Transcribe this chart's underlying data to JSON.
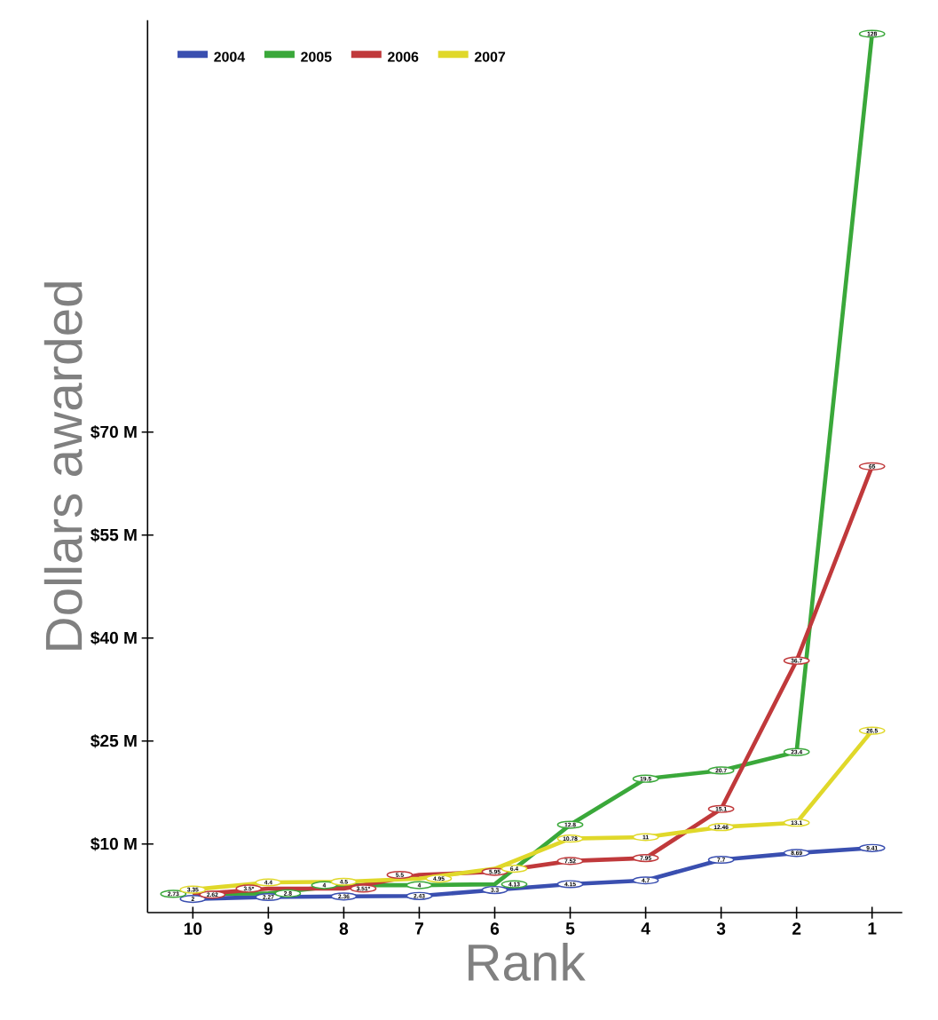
{
  "chart_data": {
    "type": "line",
    "xlabel": "Rank",
    "ylabel": "Dollars awarded",
    "categories": [
      "10",
      "9",
      "8",
      "7",
      "6",
      "5",
      "4",
      "3",
      "2",
      "1"
    ],
    "series": [
      {
        "name": "2004",
        "color": "#3a4fb0",
        "values": [
          2,
          2.27,
          2.36,
          2.43,
          3.3,
          4.15,
          4.7,
          7.7,
          8.69,
          9.41
        ],
        "value_labels": [
          "2",
          "2.27",
          "2.36",
          "2.43",
          "3.3",
          "4.15",
          "4.7",
          "7.7",
          "8.69",
          "9.41"
        ]
      },
      {
        "name": "2005",
        "color": "#3aa83a",
        "values": [
          2.73,
          2.8,
          4,
          4,
          4.13,
          12.8,
          19.5,
          20.7,
          23.4,
          128
        ],
        "value_labels": [
          "2.73",
          "2.8",
          "4",
          "4",
          "4.13",
          "12.8",
          "19.5",
          "20.7",
          "23.4",
          "128"
        ]
      },
      {
        "name": "2006",
        "color": "#c0393b",
        "values": [
          2.62,
          3.5,
          3.51,
          5.5,
          5.95,
          7.52,
          7.95,
          15.1,
          36.7,
          65
        ],
        "value_labels": [
          "2.62",
          "3.5*",
          "3.51*",
          "5.5",
          "5.95",
          "7.52",
          "7.95",
          "15.1",
          "36.7",
          "65"
        ]
      },
      {
        "name": "2007",
        "color": "#e0d82a",
        "values": [
          3.35,
          4.4,
          4.5,
          4.95,
          6.4,
          10.78,
          11,
          12.46,
          13.1,
          26.5
        ],
        "value_labels": [
          "3.35",
          "4.4",
          "4.5",
          "4.95",
          "6.4",
          "10.78",
          "11",
          "12.46",
          "13.1",
          "26.5"
        ]
      }
    ],
    "ylim": [
      0,
      130
    ],
    "yticks": [
      {
        "value": 10,
        "label": "$10 M"
      },
      {
        "value": 25,
        "label": "$25 M"
      },
      {
        "value": 40,
        "label": "$40 M"
      },
      {
        "value": 55,
        "label": "$55 M"
      },
      {
        "value": 70,
        "label": "$70 M"
      }
    ],
    "legend": "top left",
    "grid": false
  }
}
